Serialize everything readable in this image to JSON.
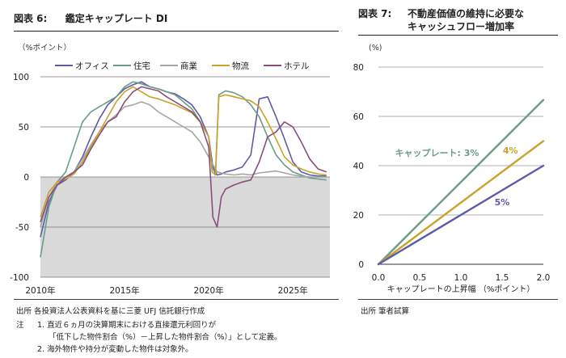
{
  "left_figure": {
    "number": "図表 6:",
    "title": "鑑定キャップレート DI",
    "unit_label": "（%ポイント）",
    "source": "出所 各投資法人公表資料を基に三菱 UFJ 信託銀行作成",
    "note_label": "注",
    "notes": [
      "1.  直近６ヵ月の決算期末における直接還元利回りが",
      "「低下した物件割合（%）－上昇した物件割合（%）」として定義。",
      "2.  海外物件や持分が変動した物件は対象外。"
    ]
  },
  "right_figure": {
    "number": "図表 7:",
    "title_line1": "不動産価値の維持に必要な",
    "title_line2": "キャッシュフロー増加率",
    "unit_label": "(%)",
    "source": "出所 筆者試算"
  },
  "chart_data": [
    {
      "type": "line",
      "title": "鑑定キャップレート DI",
      "ylabel": "（%ポイント）",
      "ylim": [
        -100,
        100
      ],
      "yticks": [
        -100,
        -50,
        0,
        50,
        100
      ],
      "ytick_labels": [
        "-100",
        "-50",
        "0",
        "50",
        "100"
      ],
      "xlim": [
        2010,
        2027.2
      ],
      "xticks": [
        2010,
        2015,
        2020,
        2025
      ],
      "xtick_labels": [
        "2010年",
        "2015年",
        "2020年",
        "2025年"
      ],
      "grid": "horizontal",
      "shaded_below_zero": true,
      "legend_position": "top",
      "series": [
        {
          "name": "オフィス",
          "color": "#5c5ca8",
          "x": [
            2010.0,
            2010.5,
            2011.0,
            2011.5,
            2012.0,
            2012.5,
            2013.0,
            2013.5,
            2014.0,
            2014.5,
            2015.0,
            2015.5,
            2016.0,
            2016.5,
            2017.0,
            2017.5,
            2018.0,
            2018.5,
            2019.0,
            2019.5,
            2020.0,
            2020.25,
            2020.5,
            2020.75,
            2021.0,
            2021.5,
            2022.0,
            2022.5,
            2023.0,
            2023.5,
            2024.0,
            2024.5,
            2025.0,
            2025.5,
            2026.0,
            2026.5,
            2027.0
          ],
          "y": [
            -60,
            -25,
            -8,
            -3,
            5,
            20,
            40,
            58,
            72,
            80,
            88,
            92,
            95,
            90,
            88,
            85,
            83,
            78,
            72,
            60,
            40,
            10,
            2,
            3,
            5,
            7,
            10,
            22,
            78,
            80,
            60,
            38,
            15,
            5,
            2,
            1,
            1
          ]
        },
        {
          "name": "住宅",
          "color": "#6b9c87",
          "x": [
            2010.0,
            2010.5,
            2011.0,
            2011.5,
            2012.0,
            2012.5,
            2013.0,
            2013.5,
            2014.0,
            2014.5,
            2015.0,
            2015.5,
            2016.0,
            2016.5,
            2017.0,
            2017.5,
            2018.0,
            2018.5,
            2019.0,
            2019.5,
            2020.0,
            2020.2,
            2020.4,
            2020.6,
            2021.0,
            2021.5,
            2022.0,
            2022.5,
            2023.0,
            2023.5,
            2024.0,
            2024.5,
            2025.0,
            2025.5,
            2026.0,
            2026.5,
            2027.0
          ],
          "y": [
            -80,
            -30,
            -5,
            5,
            30,
            55,
            65,
            70,
            75,
            80,
            90,
            95,
            93,
            90,
            88,
            85,
            82,
            75,
            68,
            55,
            40,
            10,
            3,
            82,
            86,
            84,
            80,
            72,
            60,
            40,
            22,
            12,
            5,
            2,
            -1,
            -2,
            -3
          ]
        },
        {
          "name": "商業",
          "color": "#a6a6a6",
          "x": [
            2010.0,
            2010.5,
            2011.0,
            2011.5,
            2012.0,
            2012.5,
            2013.0,
            2013.5,
            2014.0,
            2014.5,
            2015.0,
            2015.5,
            2016.0,
            2016.5,
            2017.0,
            2017.5,
            2018.0,
            2018.5,
            2019.0,
            2019.5,
            2020.0,
            2020.5,
            2021.0,
            2021.5,
            2022.0,
            2022.5,
            2023.0,
            2023.5,
            2024.0,
            2024.5,
            2025.0,
            2025.5,
            2026.0,
            2026.5,
            2027.0
          ],
          "y": [
            -50,
            -20,
            -5,
            0,
            5,
            18,
            32,
            45,
            55,
            62,
            70,
            72,
            75,
            72,
            65,
            60,
            55,
            50,
            45,
            35,
            20,
            5,
            3,
            2,
            3,
            2,
            4,
            5,
            6,
            4,
            2,
            1,
            0,
            0,
            0
          ]
        },
        {
          "name": "物流",
          "color": "#c9a22a",
          "x": [
            2010.0,
            2010.5,
            2011.0,
            2011.5,
            2012.0,
            2012.5,
            2013.0,
            2013.5,
            2014.0,
            2014.5,
            2015.0,
            2015.5,
            2016.0,
            2016.5,
            2017.0,
            2017.5,
            2018.0,
            2018.5,
            2019.0,
            2019.5,
            2020.0,
            2020.2,
            2020.4,
            2020.6,
            2021.0,
            2021.5,
            2022.0,
            2022.5,
            2023.0,
            2023.5,
            2024.0,
            2024.5,
            2025.0,
            2025.5,
            2026.0,
            2026.5,
            2027.0
          ],
          "y": [
            -40,
            -15,
            -5,
            -2,
            3,
            15,
            30,
            45,
            60,
            75,
            85,
            90,
            85,
            80,
            78,
            75,
            72,
            68,
            64,
            55,
            40,
            5,
            2,
            80,
            82,
            80,
            78,
            76,
            70,
            55,
            38,
            20,
            12,
            8,
            5,
            3,
            2
          ]
        },
        {
          "name": "ホテル",
          "color": "#8a4e7d",
          "x": [
            2010.0,
            2010.5,
            2011.0,
            2011.5,
            2012.0,
            2012.5,
            2013.0,
            2013.5,
            2014.0,
            2014.5,
            2015.0,
            2015.5,
            2016.0,
            2016.5,
            2017.0,
            2017.5,
            2018.0,
            2018.5,
            2019.0,
            2019.5,
            2020.0,
            2020.25,
            2020.5,
            2020.75,
            2021.0,
            2021.5,
            2022.0,
            2022.5,
            2023.0,
            2023.5,
            2024.0,
            2024.5,
            2025.0,
            2025.5,
            2026.0,
            2026.5,
            2027.0
          ],
          "y": [
            -45,
            -20,
            -8,
            0,
            5,
            12,
            28,
            42,
            55,
            60,
            75,
            85,
            90,
            88,
            86,
            80,
            75,
            70,
            65,
            55,
            30,
            -40,
            -50,
            -20,
            -12,
            -8,
            -5,
            -3,
            15,
            40,
            45,
            55,
            50,
            35,
            18,
            8,
            5
          ]
        }
      ]
    },
    {
      "type": "line",
      "title": "不動産価値の維持に必要なキャッシュフロー増加率",
      "ylabel": "(%)",
      "xlabel": "キャップレートの上昇幅 （%ポイント）",
      "xlim": [
        0,
        2.0
      ],
      "ylim": [
        0,
        80
      ],
      "xticks": [
        0,
        0.5,
        1.0,
        1.5,
        2.0
      ],
      "xtick_labels": [
        "0.0",
        "0.5",
        "1.0",
        "1.5",
        "2.0"
      ],
      "yticks": [
        0,
        20,
        40,
        60,
        80
      ],
      "ytick_labels": [
        "0",
        "20",
        "40",
        "60",
        "80"
      ],
      "grid": "horizontal",
      "series": [
        {
          "name": "キャップレート: 3%",
          "color": "#6b9c87",
          "x": [
            0,
            2.0
          ],
          "y": [
            0,
            66.7
          ]
        },
        {
          "name": "4%",
          "color": "#c9a22a",
          "x": [
            0,
            2.0
          ],
          "y": [
            0,
            50
          ]
        },
        {
          "name": "5%",
          "color": "#5c5ca8",
          "x": [
            0,
            2.0
          ],
          "y": [
            0,
            40
          ]
        }
      ]
    }
  ]
}
